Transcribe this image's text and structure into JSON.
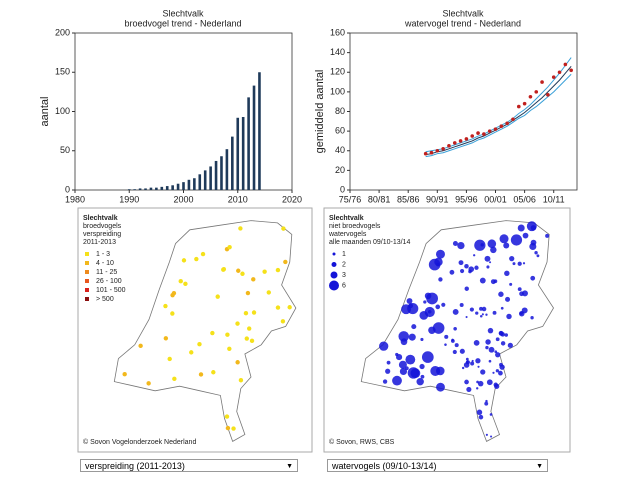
{
  "chart_data": [
    {
      "type": "bar",
      "title": "Slechtvalk",
      "subtitle": "broedvogel trend - Nederland",
      "ylabel": "aantal",
      "color": "#1f3a5a",
      "x": [
        1990,
        1991,
        1992,
        1993,
        1994,
        1995,
        1996,
        1997,
        1998,
        1999,
        2000,
        2001,
        2002,
        2003,
        2004,
        2005,
        2006,
        2007,
        2008,
        2009,
        2010,
        2011,
        2012,
        2013,
        2014
      ],
      "values": [
        1,
        1,
        2,
        2,
        3,
        3,
        4,
        5,
        6,
        8,
        10,
        13,
        15,
        20,
        25,
        30,
        37,
        43,
        52,
        68,
        92,
        93,
        118,
        133,
        150
      ],
      "xlim": [
        1980,
        2020
      ],
      "xticks": [
        1980,
        1990,
        2000,
        2010,
        2020
      ],
      "ylim": [
        0,
        200
      ],
      "yticks": [
        0,
        50,
        100,
        150,
        200
      ]
    },
    {
      "type": "line",
      "title": "Slechtvalk",
      "subtitle": "watervogel trend - Nederland",
      "ylabel": "gemiddeld aantal",
      "x": [
        1988,
        1989,
        1990,
        1991,
        1992,
        1993,
        1994,
        1995,
        1996,
        1997,
        1998,
        1999,
        2000,
        2001,
        2002,
        2003,
        2004,
        2005,
        2006,
        2007,
        2008,
        2009,
        2010,
        2011,
        2012,
        2013
      ],
      "series": [
        {
          "color": "#3aa0d8",
          "values": [
            39,
            40,
            41,
            42,
            44,
            46,
            48,
            50,
            52,
            55,
            57,
            60,
            63,
            66,
            69,
            73,
            78,
            82,
            87,
            93,
            99,
            105,
            112,
            119,
            127,
            135
          ]
        },
        {
          "color": "#3aa0d8",
          "values": [
            34,
            35,
            37,
            38,
            40,
            42,
            44,
            46,
            48,
            51,
            53,
            56,
            59,
            62,
            65,
            69,
            73,
            76,
            81,
            85,
            90,
            95,
            100,
            106,
            112,
            118
          ]
        },
        {
          "color": "#1f3a5a",
          "values": [
            36,
            37,
            39,
            40,
            42,
            44,
            46,
            48,
            50,
            53,
            55,
            58,
            61,
            64,
            67,
            71,
            75,
            79,
            84,
            89,
            94,
            100,
            106,
            112,
            119,
            126
          ]
        },
        {
          "color": "#c0201e",
          "markers": true,
          "values": [
            37,
            38,
            40,
            42,
            45,
            48,
            50,
            52,
            55,
            58,
            57,
            60,
            62,
            65,
            68,
            72,
            85,
            88,
            95,
            100,
            110,
            97,
            115,
            120,
            128,
            122
          ]
        }
      ],
      "xlim": [
        1975,
        2014
      ],
      "xticks": [
        {
          "value": 1975,
          "label": "75/76"
        },
        {
          "value": 1980,
          "label": "80/81"
        },
        {
          "value": 1985,
          "label": "85/86"
        },
        {
          "value": 1990,
          "label": "90/91"
        },
        {
          "value": 1995,
          "label": "95/96"
        },
        {
          "value": 2000,
          "label": "00/01"
        },
        {
          "value": 2005,
          "label": "05/06"
        },
        {
          "value": 2010,
          "label": "10/11"
        }
      ],
      "ylim": [
        0,
        160
      ],
      "yticks": [
        0,
        20,
        40,
        60,
        80,
        100,
        120,
        140,
        160
      ]
    }
  ],
  "maps": [
    {
      "title": [
        "Slechtvalk",
        "broedvogels",
        "verspreiding",
        "2011-2013"
      ],
      "legend": [
        {
          "label": "1 - 3",
          "color": "#f5e11a"
        },
        {
          "label": "4 - 10",
          "color": "#f2b81c"
        },
        {
          "label": "11 - 25",
          "color": "#ee8a1c"
        },
        {
          "label": "26 - 100",
          "color": "#e8561c"
        },
        {
          "label": "101 - 500",
          "color": "#d8201a"
        },
        {
          "label": "> 500",
          "color": "#8a0e0e"
        }
      ],
      "credit": "© Sovon Vogelonderzoek Nederland"
    },
    {
      "title": [
        "Slechtvalk",
        "niet broedvogels",
        "watervogels",
        "alle maanden 09/10-13/14"
      ],
      "legend": [
        {
          "label": "1"
        },
        {
          "label": "2"
        },
        {
          "label": "3"
        },
        {
          "label": "6"
        }
      ],
      "color": "#1414d8",
      "credit": "© Sovon, RWS, CBS"
    }
  ],
  "dropdowns": [
    "verspreiding (2011-2013)",
    "watervogels (09/10-13/14)"
  ]
}
